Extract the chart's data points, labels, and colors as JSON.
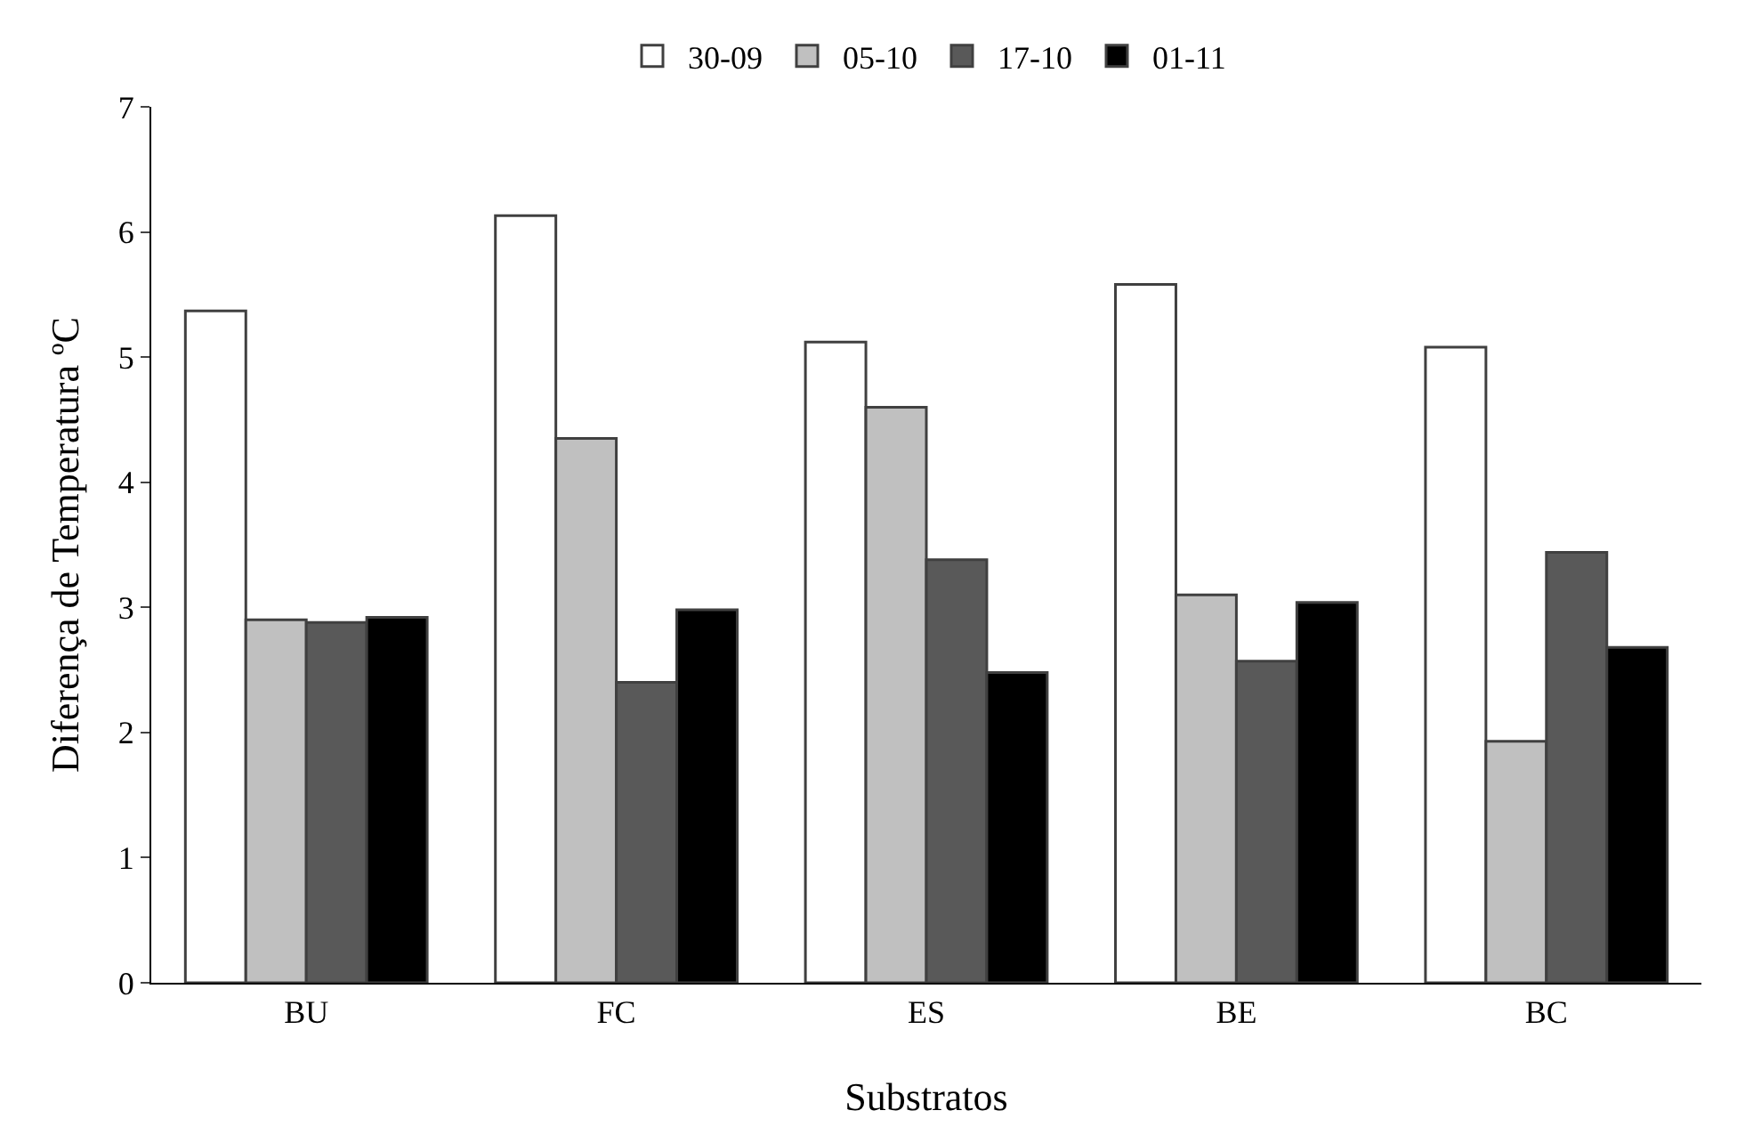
{
  "chart_data": {
    "type": "bar",
    "xlabel": "Substratos",
    "ylabel": "Diferença de Temperatura ºC",
    "categories": [
      "BU",
      "FC",
      "ES",
      "BE",
      "BC"
    ],
    "series": [
      {
        "name": "30-09",
        "color": "#ffffff",
        "values": [
          5.37,
          6.13,
          5.12,
          5.58,
          5.08
        ]
      },
      {
        "name": "05-10",
        "color": "#c0c0c0",
        "values": [
          2.9,
          4.35,
          4.6,
          3.1,
          1.93
        ]
      },
      {
        "name": "17-10",
        "color": "#595959",
        "values": [
          2.88,
          2.4,
          3.38,
          2.57,
          3.44
        ]
      },
      {
        "name": "01-11",
        "color": "#000000",
        "values": [
          2.92,
          2.98,
          2.48,
          3.04,
          2.68
        ]
      }
    ],
    "ylim": [
      0,
      7
    ],
    "yticks": [
      0,
      1,
      2,
      3,
      4,
      5,
      6,
      7
    ],
    "legend": "top"
  }
}
